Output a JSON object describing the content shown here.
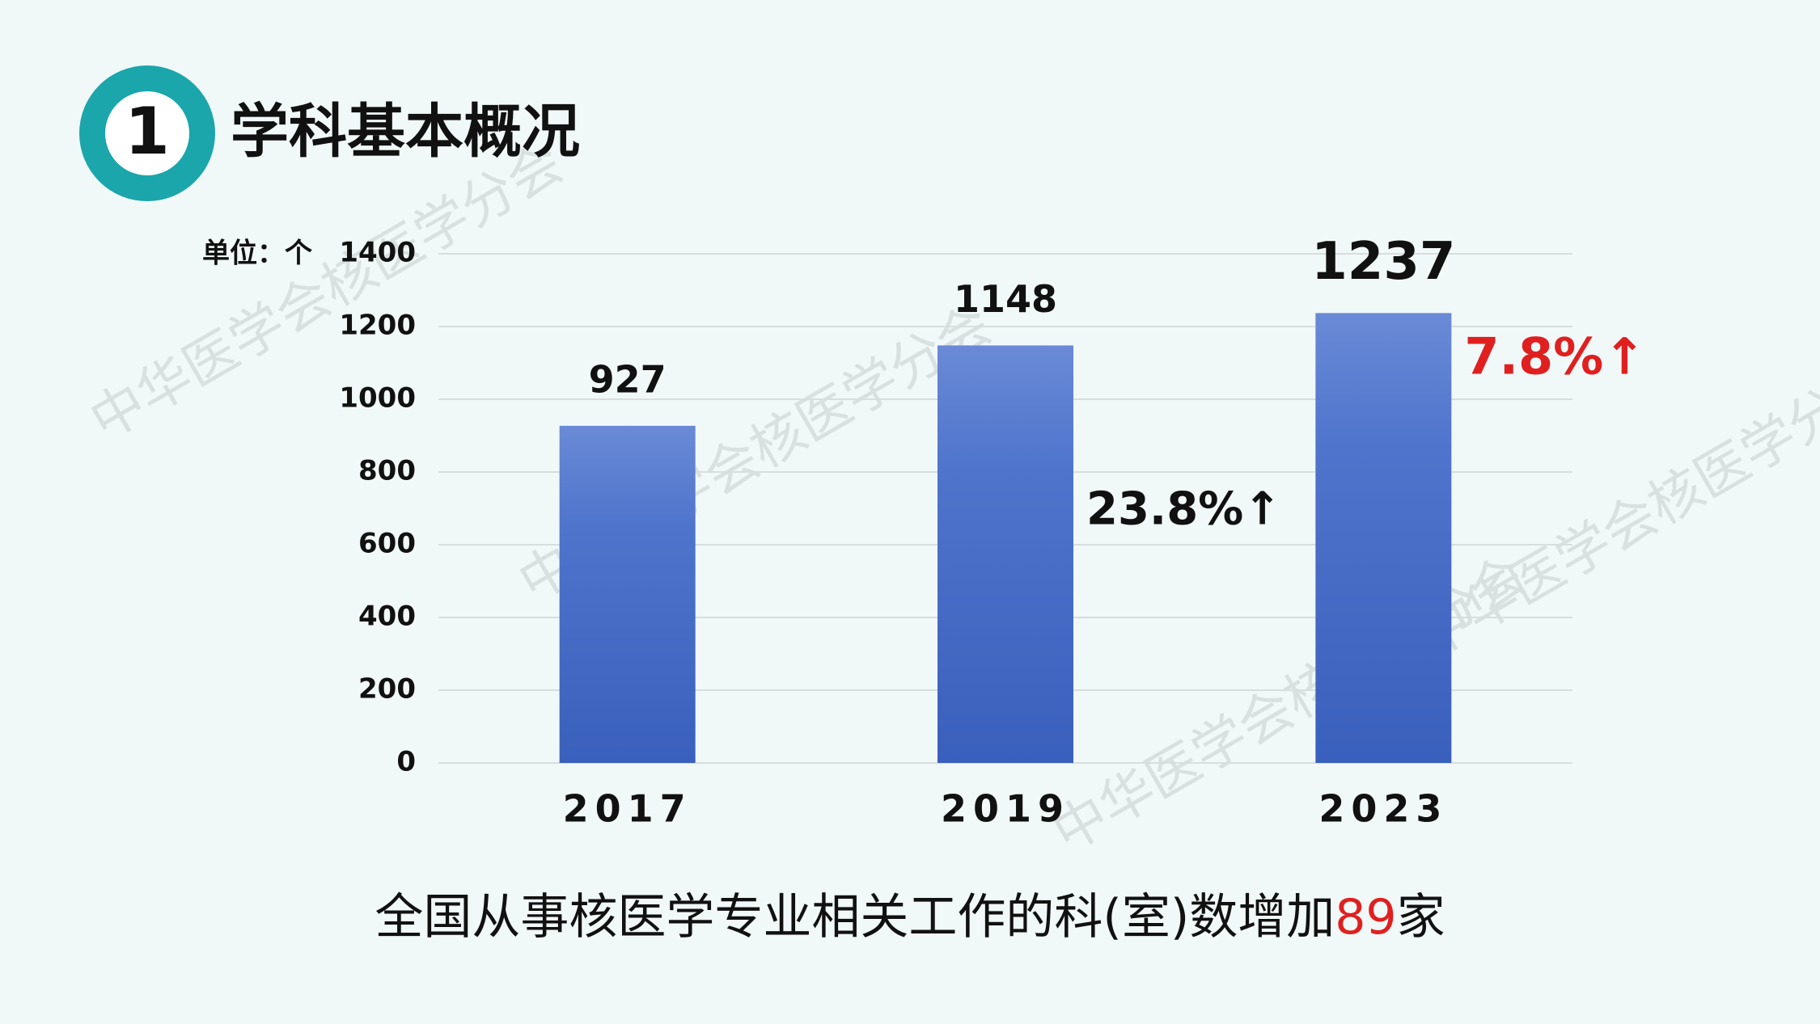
{
  "badge": "1",
  "title": "学科基本概况",
  "watermark": "中华医学会核医学分会",
  "chart_data": {
    "type": "bar",
    "unit_label": "单位：个",
    "categories": [
      "2017",
      "2019",
      "2023"
    ],
    "values": [
      927,
      1148,
      1237
    ],
    "color": "#4a70c8",
    "ylim": [
      0,
      1400
    ],
    "yticks": [
      0,
      200,
      400,
      600,
      800,
      1000,
      1200,
      1400
    ],
    "grid": true,
    "annotations": [
      {
        "text": "23.8%↑",
        "color": "#111111"
      },
      {
        "text": "7.8%↑",
        "color": "#e0201f"
      }
    ]
  },
  "footer": {
    "before": "全国从事核医学专业相关工作的科(室)数增加",
    "highlight": "89",
    "after": "家"
  }
}
